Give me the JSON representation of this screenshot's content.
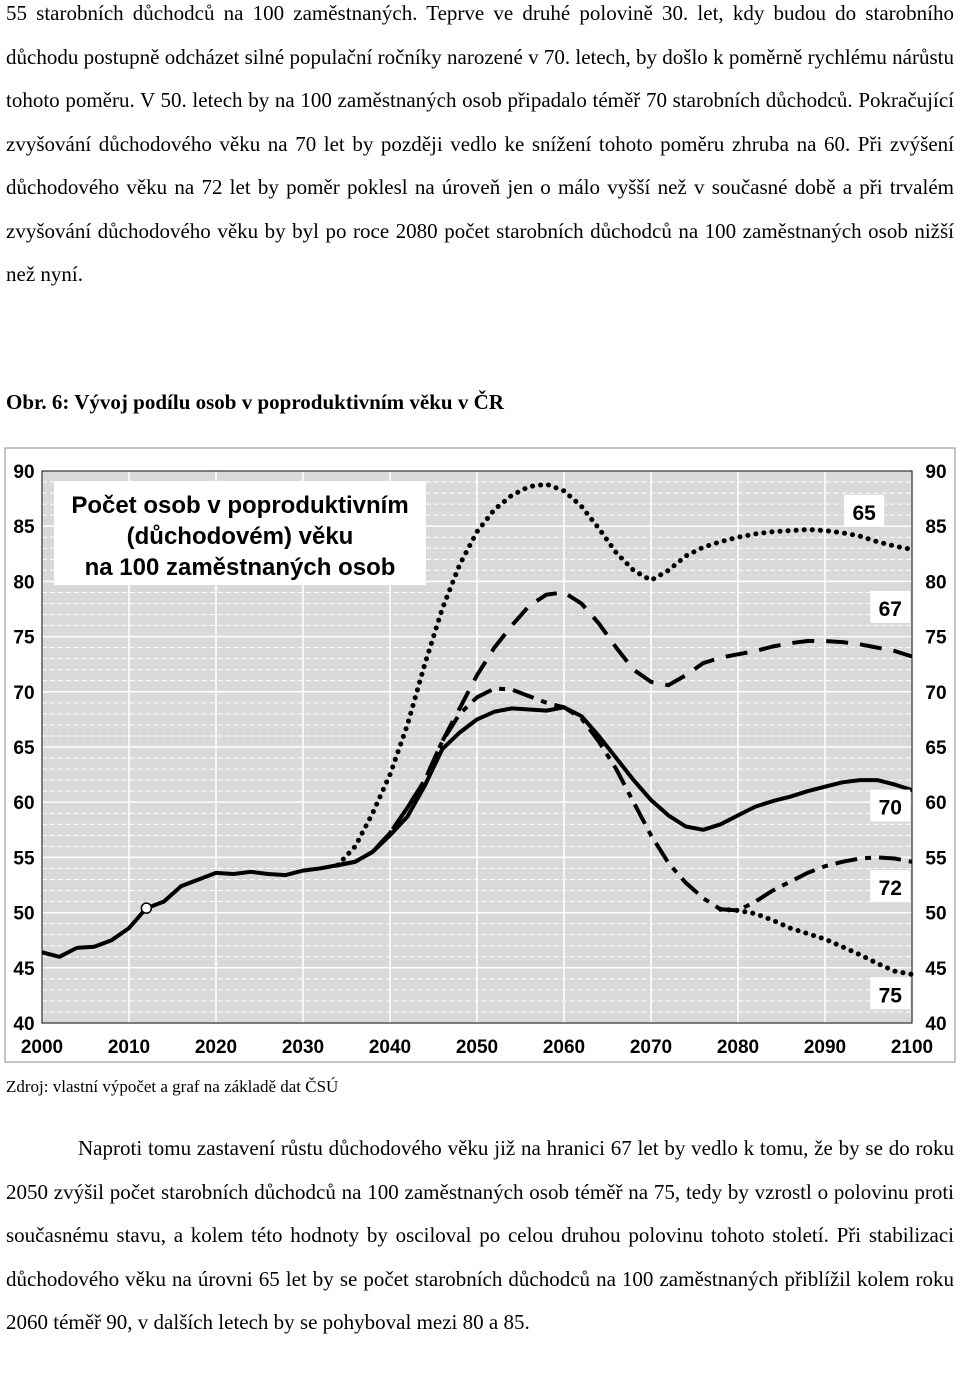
{
  "document": {
    "paragraph_top": "55 starobních důchodců na 100 zaměstnaných. Teprve ve druhé polovině 30. let, kdy budou do starobního důchodu postupně odcházet silné populační ročníky narozené v 70. letech, by došlo k poměrně rychlému nárůstu tohoto poměru. V 50. letech by na 100 zaměstnaných osob připadalo téměř 70 starobních důchodců. Pokračující zvyšování důchodového věku na 70 let by později vedlo ke snížení tohoto poměru zhruba na 60. Při zvýšení důchodového věku na 72 let by poměr poklesl na úroveň jen o málo vyšší než v současné době a při trvalém zvyšování důchodového věku by byl po roce 2080 počet starobních důchodců na 100 zaměstnaných osob nižší než nyní.",
    "figure_caption": "Obr. 6: Vývoj podílu osob v poproduktivním věku v ČR",
    "source_note": "Zdroj: vlastní výpočet a graf na základě dat ČSÚ",
    "paragraph_bottom": "Naproti tomu zastavení růstu důchodového věku již na hranici 67 let by vedlo k tomu, že by se do roku 2050 zvýšil počet starobních důchodců na 100 zaměstnaných osob téměř na 75, tedy by vzrostl o polovinu proti současnému stavu, a kolem této hodnoty by osciloval po celou druhou polovinu tohoto století. Při stabilizaci důchodového věku na úrovni 65 let by se počet starobních důchodců na 100 zaměstnaných přiblížil kolem roku 2060 téměř 90, v dalších letech by se pohyboval mezi 80 a 85."
  },
  "chart_data": {
    "type": "line",
    "title_lines": [
      "Počet osob v poproduktivním",
      "(důchodovém) věku",
      "na 100 zaměstnaných osob"
    ],
    "xlabel": "",
    "ylabel": "",
    "xlim": [
      2000,
      2100
    ],
    "ylim": [
      40,
      90
    ],
    "x_ticks": [
      2000,
      2010,
      2020,
      2030,
      2040,
      2050,
      2060,
      2070,
      2080,
      2090,
      2100
    ],
    "y_ticks": [
      40,
      45,
      50,
      55,
      60,
      65,
      70,
      75,
      80,
      85,
      90
    ],
    "grid": true,
    "background": "#d9d9d9",
    "line_color": "#000000",
    "marker_point": {
      "x": 2012,
      "y": 50.4
    },
    "history": [
      [
        2000,
        46.4
      ],
      [
        2002,
        46.0
      ],
      [
        2004,
        46.8
      ],
      [
        2006,
        46.9
      ],
      [
        2008,
        47.5
      ],
      [
        2010,
        48.6
      ],
      [
        2012,
        50.4
      ],
      [
        2014,
        51.0
      ],
      [
        2016,
        52.4
      ],
      [
        2018,
        53.0
      ],
      [
        2020,
        53.6
      ],
      [
        2022,
        53.5
      ],
      [
        2024,
        53.7
      ],
      [
        2026,
        53.5
      ],
      [
        2028,
        53.4
      ],
      [
        2030,
        53.8
      ],
      [
        2032,
        54.0
      ],
      [
        2034,
        54.3
      ]
    ],
    "series": [
      {
        "name": "65",
        "style": "dotted",
        "points": [
          [
            2034,
            54.3
          ],
          [
            2036,
            56.0
          ],
          [
            2038,
            59.0
          ],
          [
            2040,
            62.5
          ],
          [
            2042,
            67.0
          ],
          [
            2044,
            72.5
          ],
          [
            2046,
            77.5
          ],
          [
            2048,
            81.5
          ],
          [
            2050,
            84.5
          ],
          [
            2052,
            86.5
          ],
          [
            2054,
            87.8
          ],
          [
            2056,
            88.6
          ],
          [
            2058,
            88.8
          ],
          [
            2060,
            88.2
          ],
          [
            2062,
            86.8
          ],
          [
            2064,
            84.8
          ],
          [
            2066,
            82.6
          ],
          [
            2068,
            81.0
          ],
          [
            2070,
            80.1
          ],
          [
            2072,
            81.0
          ],
          [
            2074,
            82.3
          ],
          [
            2076,
            83.1
          ],
          [
            2078,
            83.6
          ],
          [
            2080,
            84.0
          ],
          [
            2082,
            84.3
          ],
          [
            2084,
            84.5
          ],
          [
            2086,
            84.6
          ],
          [
            2088,
            84.7
          ],
          [
            2090,
            84.6
          ],
          [
            2092,
            84.4
          ],
          [
            2094,
            84.1
          ],
          [
            2096,
            83.6
          ],
          [
            2098,
            83.2
          ],
          [
            2100,
            82.9
          ]
        ]
      },
      {
        "name": "67",
        "style": "dashed",
        "points": [
          [
            2034,
            54.3
          ],
          [
            2036,
            54.6
          ],
          [
            2038,
            55.5
          ],
          [
            2040,
            57.2
          ],
          [
            2042,
            59.5
          ],
          [
            2044,
            62.0
          ],
          [
            2046,
            65.5
          ],
          [
            2048,
            68.5
          ],
          [
            2050,
            71.5
          ],
          [
            2052,
            74.0
          ],
          [
            2054,
            76.0
          ],
          [
            2056,
            77.8
          ],
          [
            2058,
            78.8
          ],
          [
            2060,
            79.0
          ],
          [
            2062,
            78.0
          ],
          [
            2064,
            76.2
          ],
          [
            2066,
            74.0
          ],
          [
            2068,
            72.0
          ],
          [
            2070,
            70.9
          ],
          [
            2072,
            70.6
          ],
          [
            2074,
            71.5
          ],
          [
            2076,
            72.6
          ],
          [
            2078,
            73.1
          ],
          [
            2080,
            73.4
          ],
          [
            2082,
            73.7
          ],
          [
            2084,
            74.1
          ],
          [
            2086,
            74.4
          ],
          [
            2088,
            74.6
          ],
          [
            2090,
            74.6
          ],
          [
            2092,
            74.5
          ],
          [
            2094,
            74.3
          ],
          [
            2096,
            74.0
          ],
          [
            2098,
            73.7
          ],
          [
            2100,
            73.2
          ]
        ]
      },
      {
        "name": "70",
        "style": "solid",
        "points": [
          [
            2034,
            54.3
          ],
          [
            2036,
            54.6
          ],
          [
            2038,
            55.5
          ],
          [
            2040,
            57.0
          ],
          [
            2042,
            58.7
          ],
          [
            2044,
            61.5
          ],
          [
            2046,
            64.8
          ],
          [
            2048,
            66.3
          ],
          [
            2050,
            67.5
          ],
          [
            2052,
            68.2
          ],
          [
            2054,
            68.5
          ],
          [
            2056,
            68.4
          ],
          [
            2058,
            68.3
          ],
          [
            2060,
            68.6
          ],
          [
            2062,
            67.8
          ],
          [
            2064,
            66.0
          ],
          [
            2066,
            64.0
          ],
          [
            2068,
            62.0
          ],
          [
            2070,
            60.2
          ],
          [
            2072,
            58.8
          ],
          [
            2074,
            57.8
          ],
          [
            2076,
            57.5
          ],
          [
            2078,
            58.0
          ],
          [
            2080,
            58.8
          ],
          [
            2082,
            59.6
          ],
          [
            2084,
            60.1
          ],
          [
            2086,
            60.5
          ],
          [
            2088,
            61.0
          ],
          [
            2090,
            61.4
          ],
          [
            2092,
            61.8
          ],
          [
            2094,
            62.0
          ],
          [
            2096,
            62.0
          ],
          [
            2098,
            61.6
          ],
          [
            2100,
            61.1
          ]
        ]
      },
      {
        "name": "72",
        "style": "dashdot",
        "points": [
          [
            2034,
            54.3
          ],
          [
            2036,
            54.6
          ],
          [
            2038,
            55.5
          ],
          [
            2040,
            57.2
          ],
          [
            2042,
            59.5
          ],
          [
            2044,
            62.0
          ],
          [
            2046,
            65.5
          ],
          [
            2048,
            68.0
          ],
          [
            2050,
            69.5
          ],
          [
            2052,
            70.3
          ],
          [
            2054,
            70.2
          ],
          [
            2056,
            69.6
          ],
          [
            2058,
            69.0
          ],
          [
            2060,
            68.6
          ],
          [
            2062,
            67.6
          ],
          [
            2064,
            65.5
          ],
          [
            2066,
            63.0
          ],
          [
            2068,
            60.0
          ],
          [
            2070,
            57.0
          ],
          [
            2072,
            54.5
          ],
          [
            2074,
            52.7
          ],
          [
            2076,
            51.3
          ],
          [
            2078,
            50.3
          ],
          [
            2080,
            50.2
          ],
          [
            2082,
            51.0
          ],
          [
            2084,
            52.0
          ],
          [
            2086,
            52.8
          ],
          [
            2088,
            53.6
          ],
          [
            2090,
            54.2
          ],
          [
            2092,
            54.6
          ],
          [
            2094,
            54.9
          ],
          [
            2096,
            55.0
          ],
          [
            2098,
            54.9
          ],
          [
            2100,
            54.6
          ]
        ]
      },
      {
        "name": "75",
        "style": "dotted",
        "points": [
          [
            2078,
            50.3
          ],
          [
            2080,
            50.2
          ],
          [
            2082,
            49.9
          ],
          [
            2084,
            49.3
          ],
          [
            2086,
            48.6
          ],
          [
            2088,
            48.1
          ],
          [
            2090,
            47.6
          ],
          [
            2092,
            46.9
          ],
          [
            2094,
            46.2
          ],
          [
            2096,
            45.4
          ],
          [
            2098,
            44.7
          ],
          [
            2100,
            44.4
          ]
        ]
      }
    ],
    "series_labels": [
      {
        "name": "65",
        "label_x": 2094.5,
        "label_y": 86.3
      },
      {
        "name": "67",
        "label_x": 2097.5,
        "label_y": 77.6
      },
      {
        "name": "70",
        "label_x": 2097.5,
        "label_y": 59.6
      },
      {
        "name": "72",
        "label_x": 2097.5,
        "label_y": 52.3
      },
      {
        "name": "75",
        "label_x": 2097.5,
        "label_y": 42.6
      }
    ]
  }
}
